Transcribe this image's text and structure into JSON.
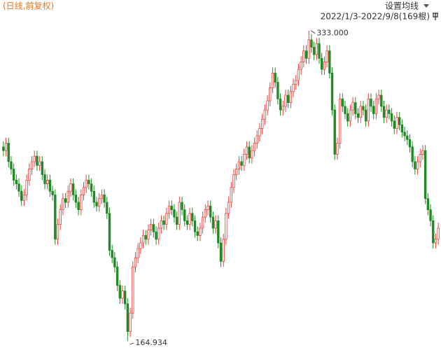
{
  "header": {
    "mode": "(日线,前复权)",
    "ma_setting": "设置均线",
    "range": "2022/1/3-2022/9/8(169根)"
  },
  "chart_data": {
    "type": "candlestick",
    "up_color": "#e8413c",
    "down_color": "#1e8c23",
    "ylim": [
      160,
      342
    ],
    "open": [
      270,
      268,
      272,
      262,
      258,
      252,
      250,
      246,
      241,
      244,
      252,
      258,
      262,
      265,
      260,
      262,
      255,
      250,
      252,
      246,
      244,
      220,
      228,
      236,
      242,
      240,
      246,
      250,
      244,
      240,
      236,
      244,
      248,
      252,
      250,
      246,
      240,
      238,
      242,
      244,
      240,
      234,
      214,
      210,
      205,
      195,
      188,
      192,
      185,
      170,
      180,
      205,
      210,
      215,
      218,
      222,
      220,
      225,
      228,
      224,
      220,
      226,
      230,
      228,
      234,
      238,
      236,
      232,
      228,
      240,
      236,
      230,
      228,
      234,
      230,
      224,
      222,
      226,
      232,
      236,
      238,
      232,
      226,
      230,
      218,
      208,
      220,
      234,
      240,
      248,
      255,
      258,
      262,
      260,
      266,
      270,
      264,
      268,
      272,
      276,
      280,
      285,
      290,
      295,
      302,
      310,
      305,
      296,
      290,
      292,
      298,
      294,
      300,
      304,
      306,
      312,
      316,
      322,
      318,
      328,
      324,
      320,
      326,
      318,
      312,
      316,
      322,
      310,
      290,
      266,
      272,
      296,
      292,
      288,
      284,
      290,
      294,
      288,
      286,
      292,
      290,
      284,
      296,
      292,
      288,
      296,
      298,
      292,
      286,
      290,
      288,
      284,
      280,
      286,
      282,
      278,
      276,
      274,
      270,
      262,
      258,
      262,
      266,
      268,
      242,
      236,
      230,
      218,
      220
    ],
    "high": [
      273,
      275,
      275,
      265,
      261,
      255,
      253,
      249,
      247,
      255,
      261,
      265,
      268,
      268,
      265,
      265,
      258,
      255,
      255,
      249,
      247,
      231,
      239,
      245,
      245,
      249,
      253,
      253,
      247,
      243,
      247,
      251,
      255,
      255,
      253,
      249,
      243,
      245,
      247,
      247,
      243,
      237,
      217,
      213,
      208,
      198,
      195,
      195,
      188,
      183,
      208,
      213,
      218,
      221,
      225,
      225,
      228,
      231,
      231,
      227,
      229,
      233,
      233,
      237,
      241,
      241,
      239,
      235,
      243,
      243,
      239,
      233,
      237,
      237,
      233,
      227,
      229,
      235,
      239,
      241,
      241,
      235,
      233,
      233,
      221,
      223,
      237,
      243,
      251,
      258,
      261,
      265,
      265,
      269,
      273,
      273,
      271,
      275,
      279,
      283,
      288,
      293,
      298,
      305,
      313,
      313,
      308,
      299,
      295,
      301,
      301,
      303,
      307,
      309,
      315,
      319,
      325,
      325,
      333,
      331,
      327,
      329,
      329,
      321,
      319,
      325,
      325,
      313,
      293,
      275,
      299,
      299,
      295,
      291,
      293,
      297,
      297,
      291,
      295,
      295,
      293,
      299,
      299,
      295,
      299,
      301,
      301,
      295,
      293,
      293,
      291,
      287,
      289,
      289,
      285,
      281,
      279,
      277,
      273,
      265,
      265,
      269,
      271,
      271,
      245,
      239,
      233,
      223,
      229
    ],
    "low": [
      265,
      265,
      259,
      255,
      249,
      247,
      243,
      238,
      238,
      241,
      249,
      255,
      259,
      257,
      257,
      252,
      247,
      247,
      243,
      241,
      217,
      217,
      225,
      233,
      237,
      237,
      243,
      241,
      237,
      233,
      233,
      241,
      245,
      247,
      243,
      237,
      235,
      235,
      239,
      237,
      231,
      211,
      207,
      202,
      192,
      185,
      185,
      182,
      164.934,
      167,
      177,
      202,
      207,
      212,
      215,
      217,
      217,
      222,
      221,
      217,
      217,
      223,
      225,
      225,
      231,
      233,
      229,
      225,
      225,
      233,
      227,
      225,
      225,
      227,
      221,
      219,
      219,
      223,
      229,
      233,
      229,
      223,
      223,
      215,
      205,
      205,
      217,
      231,
      237,
      245,
      252,
      255,
      257,
      257,
      263,
      261,
      261,
      265,
      269,
      273,
      277,
      282,
      287,
      292,
      299,
      302,
      293,
      287,
      287,
      289,
      291,
      291,
      297,
      301,
      303,
      309,
      313,
      315,
      315,
      321,
      317,
      317,
      315,
      309,
      309,
      313,
      307,
      287,
      263,
      263,
      269,
      289,
      285,
      281,
      281,
      287,
      285,
      283,
      283,
      287,
      281,
      281,
      289,
      285,
      285,
      293,
      289,
      283,
      283,
      285,
      281,
      277,
      277,
      279,
      275,
      273,
      271,
      267,
      259,
      255,
      255,
      259,
      263,
      239,
      233,
      227,
      215,
      215,
      217
    ],
    "close": [
      268,
      272,
      262,
      258,
      252,
      250,
      246,
      241,
      244,
      252,
      258,
      262,
      265,
      260,
      262,
      255,
      250,
      252,
      246,
      244,
      220,
      228,
      236,
      242,
      240,
      246,
      250,
      244,
      240,
      236,
      244,
      248,
      252,
      250,
      246,
      240,
      238,
      242,
      244,
      240,
      234,
      214,
      210,
      205,
      195,
      188,
      192,
      185,
      170,
      180,
      205,
      210,
      215,
      218,
      222,
      220,
      225,
      228,
      224,
      220,
      226,
      230,
      228,
      234,
      238,
      236,
      232,
      228,
      240,
      236,
      230,
      228,
      234,
      230,
      224,
      222,
      226,
      232,
      236,
      238,
      232,
      226,
      230,
      218,
      208,
      220,
      234,
      240,
      248,
      255,
      258,
      262,
      260,
      266,
      270,
      264,
      268,
      272,
      276,
      280,
      285,
      290,
      295,
      302,
      310,
      305,
      296,
      290,
      292,
      298,
      294,
      300,
      304,
      306,
      312,
      316,
      322,
      318,
      328,
      324,
      320,
      326,
      318,
      312,
      316,
      322,
      310,
      290,
      266,
      272,
      296,
      292,
      288,
      284,
      290,
      294,
      288,
      286,
      292,
      290,
      284,
      296,
      292,
      288,
      296,
      298,
      292,
      286,
      290,
      288,
      284,
      280,
      286,
      282,
      278,
      276,
      274,
      270,
      262,
      258,
      262,
      266,
      268,
      242,
      236,
      230,
      218,
      220,
      226
    ],
    "annotations": [
      {
        "value": 333,
        "label": "333.000"
      },
      {
        "value": 164.934,
        "label": "164.934"
      }
    ]
  }
}
